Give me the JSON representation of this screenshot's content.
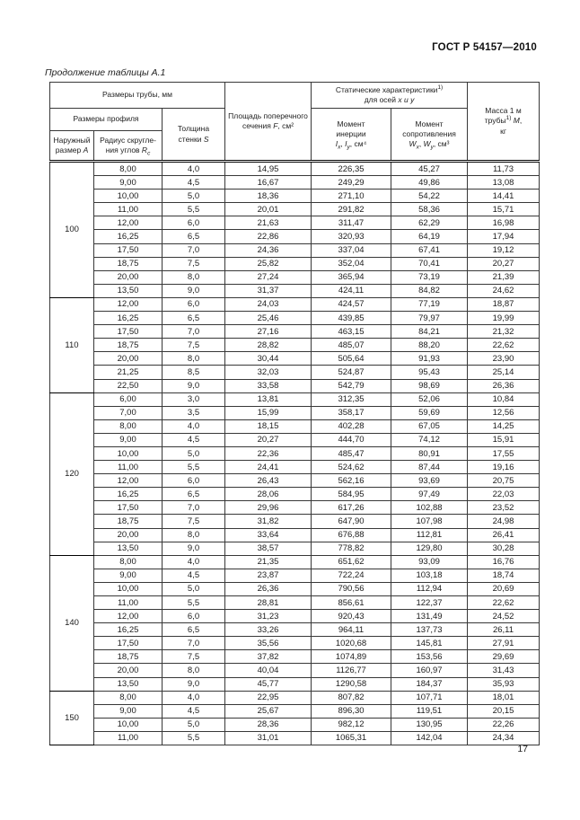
{
  "page": {
    "doc_number": "ГОСТ Р 54157—2010",
    "table_caption": "Продолжение таблицы А.1",
    "page_number": "17"
  },
  "table": {
    "header": {
      "pipe_dims": "Размеры трубы, мм",
      "profile_dims": "Размеры профиля",
      "outer_label": "Наружный размер ",
      "outer_var": "А",
      "radius_label": "Радиус скругле-ния углов ",
      "radius_var": "R",
      "radius_sub": "с",
      "thickness_label": "Толщина стенки ",
      "thickness_var": "S",
      "area_label": "Площадь поперечного сечения ",
      "area_var": "F",
      "area_unit": ", см²",
      "static_label": "Статические характеристики",
      "footnote_mark": "1)",
      "static_axes_label": "для осей ",
      "static_axes_vars": "x и y",
      "inertia_l1": "Момент",
      "inertia_l2": "инерции",
      "inertia_var1": "I",
      "inertia_sub1": "x",
      "inertia_sep": ", ",
      "inertia_var2": "I",
      "inertia_sub2": "y",
      "inertia_unit": ", см⁴",
      "resist_l1": "Момент",
      "resist_l2": "сопротивления",
      "resist_var1": "W",
      "resist_sub1": "x",
      "resist_sep": ", ",
      "resist_var2": "W",
      "resist_sub2": "y",
      "resist_unit": ", см³",
      "mass_l1": "Масса 1 м",
      "mass_l2a": "трубы",
      "mass_var": "М",
      "mass_comma": ",",
      "mass_l3": "кг"
    },
    "groups": [
      {
        "size": "100",
        "rows": [
          [
            "8,00",
            "4,0",
            "14,95",
            "226,35",
            "45,27",
            "11,73"
          ],
          [
            "9,00",
            "4,5",
            "16,67",
            "249,29",
            "49,86",
            "13,08"
          ],
          [
            "10,00",
            "5,0",
            "18,36",
            "271,10",
            "54,22",
            "14,41"
          ],
          [
            "11,00",
            "5,5",
            "20,01",
            "291,82",
            "58,36",
            "15,71"
          ],
          [
            "12,00",
            "6,0",
            "21,63",
            "311,47",
            "62,29",
            "16,98"
          ],
          [
            "16,25",
            "6,5",
            "22,86",
            "320,93",
            "64,19",
            "17,94"
          ],
          [
            "17,50",
            "7,0",
            "24,36",
            "337,04",
            "67,41",
            "19,12"
          ],
          [
            "18,75",
            "7,5",
            "25,82",
            "352,04",
            "70,41",
            "20,27"
          ],
          [
            "20,00",
            "8,0",
            "27,24",
            "365,94",
            "73,19",
            "21,39"
          ],
          [
            "13,50",
            "9,0",
            "31,37",
            "424,11",
            "84,82",
            "24,62"
          ]
        ]
      },
      {
        "size": "110",
        "rows": [
          [
            "12,00",
            "6,0",
            "24,03",
            "424,57",
            "77,19",
            "18,87"
          ],
          [
            "16,25",
            "6,5",
            "25,46",
            "439,85",
            "79,97",
            "19,99"
          ],
          [
            "17,50",
            "7,0",
            "27,16",
            "463,15",
            "84,21",
            "21,32"
          ],
          [
            "18,75",
            "7,5",
            "28,82",
            "485,07",
            "88,20",
            "22,62"
          ],
          [
            "20,00",
            "8,0",
            "30,44",
            "505,64",
            "91,93",
            "23,90"
          ],
          [
            "21,25",
            "8,5",
            "32,03",
            "524,87",
            "95,43",
            "25,14"
          ],
          [
            "22,50",
            "9,0",
            "33,58",
            "542,79",
            "98,69",
            "26,36"
          ]
        ]
      },
      {
        "size": "120",
        "rows": [
          [
            "6,00",
            "3,0",
            "13,81",
            "312,35",
            "52,06",
            "10,84"
          ],
          [
            "7,00",
            "3,5",
            "15,99",
            "358,17",
            "59,69",
            "12,56"
          ],
          [
            "8,00",
            "4,0",
            "18,15",
            "402,28",
            "67,05",
            "14,25"
          ],
          [
            "9,00",
            "4,5",
            "20,27",
            "444,70",
            "74,12",
            "15,91"
          ],
          [
            "10,00",
            "5,0",
            "22,36",
            "485,47",
            "80,91",
            "17,55"
          ],
          [
            "11,00",
            "5,5",
            "24,41",
            "524,62",
            "87,44",
            "19,16"
          ],
          [
            "12,00",
            "6,0",
            "26,43",
            "562,16",
            "93,69",
            "20,75"
          ],
          [
            "16,25",
            "6,5",
            "28,06",
            "584,95",
            "97,49",
            "22,03"
          ],
          [
            "17,50",
            "7,0",
            "29,96",
            "617,26",
            "102,88",
            "23,52"
          ],
          [
            "18,75",
            "7,5",
            "31,82",
            "647,90",
            "107,98",
            "24,98"
          ],
          [
            "20,00",
            "8,0",
            "33,64",
            "676,88",
            "112,81",
            "26,41"
          ],
          [
            "13,50",
            "9,0",
            "38,57",
            "778,82",
            "129,80",
            "30,28"
          ]
        ]
      },
      {
        "size": "140",
        "rows": [
          [
            "8,00",
            "4,0",
            "21,35",
            "651,62",
            "93,09",
            "16,76"
          ],
          [
            "9,00",
            "4,5",
            "23,87",
            "722,24",
            "103,18",
            "18,74"
          ],
          [
            "10,00",
            "5,0",
            "26,36",
            "790,56",
            "112,94",
            "20,69"
          ],
          [
            "11,00",
            "5,5",
            "28,81",
            "856,61",
            "122,37",
            "22,62"
          ],
          [
            "12,00",
            "6,0",
            "31,23",
            "920,43",
            "131,49",
            "24,52"
          ],
          [
            "16,25",
            "6,5",
            "33,26",
            "964,11",
            "137,73",
            "26,11"
          ],
          [
            "17,50",
            "7,0",
            "35,56",
            "1020,68",
            "145,81",
            "27,91"
          ],
          [
            "18,75",
            "7,5",
            "37,82",
            "1074,89",
            "153,56",
            "29,69"
          ],
          [
            "20,00",
            "8,0",
            "40,04",
            "1126,77",
            "160,97",
            "31,43"
          ],
          [
            "13,50",
            "9,0",
            "45,77",
            "1290,58",
            "184,37",
            "35,93"
          ]
        ]
      },
      {
        "size": "150",
        "rows": [
          [
            "8,00",
            "4,0",
            "22,95",
            "807,82",
            "107,71",
            "18,01"
          ],
          [
            "9,00",
            "4,5",
            "25,67",
            "896,30",
            "119,51",
            "20,15"
          ],
          [
            "10,00",
            "5,0",
            "28,36",
            "982,12",
            "130,95",
            "22,26"
          ],
          [
            "11,00",
            "5,5",
            "31,01",
            "1065,31",
            "142,04",
            "24,34"
          ]
        ]
      }
    ]
  }
}
